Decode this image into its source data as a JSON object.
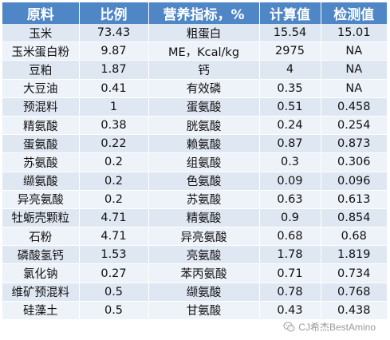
{
  "table": {
    "headers": [
      "原料",
      "比例",
      "营养指标，%",
      "计算值",
      "检测值"
    ],
    "rows": [
      [
        "玉米",
        "73.43",
        "粗蛋白",
        "15.54",
        "15.01"
      ],
      [
        "玉米蛋白粉",
        "9.87",
        "ME，Kcal/kg",
        "2975",
        "NA"
      ],
      [
        "豆粕",
        "1.87",
        "钙",
        "4",
        "NA"
      ],
      [
        "大豆油",
        "0.41",
        "有效磷",
        "0.35",
        "NA"
      ],
      [
        "预混料",
        "1",
        "蛋氨酸",
        "0.51",
        "0.458"
      ],
      [
        "精氨酸",
        "0.38",
        "胱氨酸",
        "0.24",
        "0.254"
      ],
      [
        "蛋氨酸",
        "0.22",
        "赖氨酸",
        "0.87",
        "0.873"
      ],
      [
        "苏氨酸",
        "0.2",
        "组氨酸",
        "0.3",
        "0.306"
      ],
      [
        "缬氨酸",
        "0.2",
        "色氨酸",
        "0.09",
        "0.096"
      ],
      [
        "异亮氨酸",
        "0.2",
        "苏氨酸",
        "0.63",
        "0.613"
      ],
      [
        "牡蛎壳颗粒",
        "4.71",
        "精氨酸",
        "0.9",
        "0.854"
      ],
      [
        "石粉",
        "4.71",
        "异亮氨酸",
        "0.68",
        "0.68"
      ],
      [
        "磷酸氢钙",
        "1.53",
        "亮氨酸",
        "1.78",
        "1.819"
      ],
      [
        "氯化钠",
        "0.27",
        "苯丙氨酸",
        "0.71",
        "0.734"
      ],
      [
        "维矿预混料",
        "0.5",
        "缬氨酸",
        "0.78",
        "0.768"
      ],
      [
        "硅藻土",
        "0.5",
        "甘氨酸",
        "0.43",
        "0.438"
      ]
    ]
  },
  "watermark": {
    "text": "CJ希杰BestAmino",
    "icon": "wechat-logo-icon"
  },
  "colors": {
    "header_bg": "#4f86c6",
    "row_odd": "#dfe7f3",
    "row_even": "#eef2f9"
  }
}
